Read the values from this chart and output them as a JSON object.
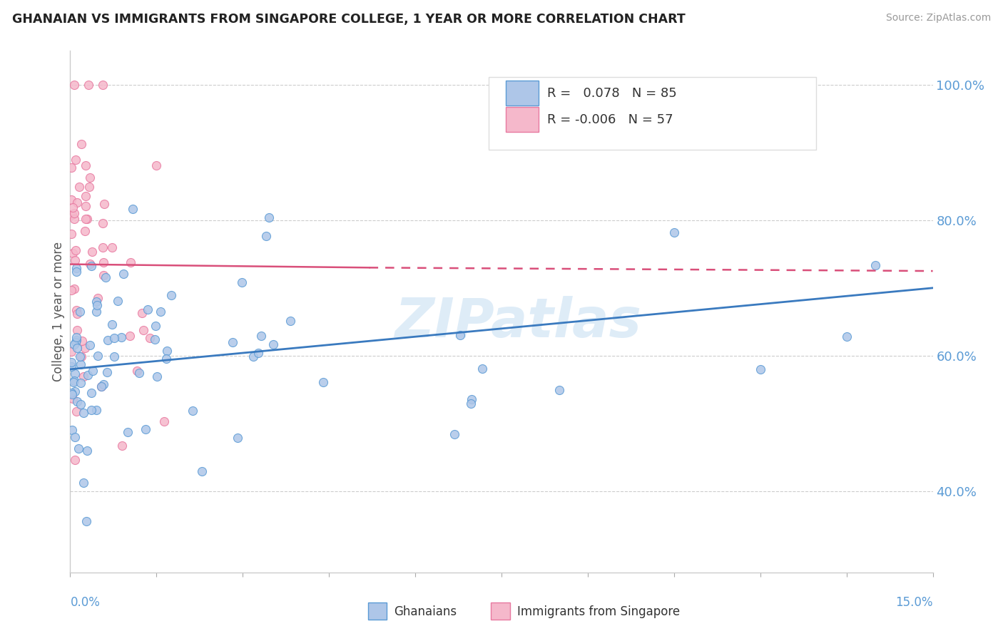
{
  "title": "GHANAIAN VS IMMIGRANTS FROM SINGAPORE COLLEGE, 1 YEAR OR MORE CORRELATION CHART",
  "source_text": "Source: ZipAtlas.com",
  "ylabel": "College, 1 year or more",
  "xmin": 0.0,
  "xmax": 15.0,
  "ymin": 28.0,
  "ymax": 105.0,
  "ytick_values": [
    40.0,
    60.0,
    80.0,
    100.0
  ],
  "blue_color": "#aec6e8",
  "pink_color": "#f5b8cb",
  "blue_edge_color": "#5b9bd5",
  "pink_edge_color": "#e879a0",
  "blue_line_color": "#3a7abf",
  "pink_line_color": "#d94f7a",
  "watermark_color": "#d0e4f5",
  "legend_R1": " 0.078",
  "legend_N1": "85",
  "legend_R2": "-0.006",
  "legend_N2": "57"
}
